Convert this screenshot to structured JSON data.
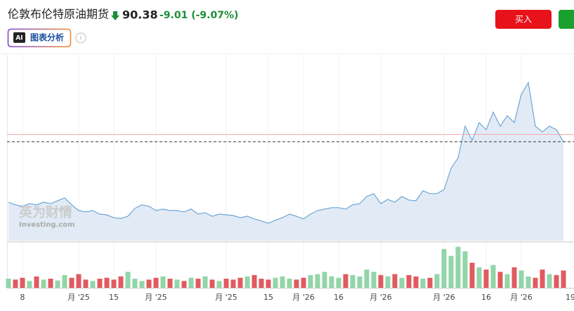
{
  "header": {
    "title": "伦敦布伦特原油期货",
    "price": 90.38,
    "change": "-9.01 (-9.07%)",
    "ai_button": {
      "icon": "AI",
      "label": "图表分析"
    },
    "buy_button": "买入"
  },
  "watermark": {
    "cn": "英为财情",
    "en": "Investing.com"
  },
  "chart_data": {
    "type": "area",
    "categories": [
      null,
      null,
      "8",
      null,
      null,
      null,
      null,
      null,
      null,
      null,
      "月 '25",
      null,
      null,
      null,
      null,
      "15",
      null,
      null,
      null,
      null,
      null,
      "月 '25",
      null,
      null,
      null,
      null,
      null,
      null,
      null,
      null,
      null,
      "月 '25",
      null,
      null,
      null,
      null,
      null,
      "15",
      null,
      null,
      null,
      null,
      "月 '26",
      null,
      null,
      null,
      null,
      "16",
      null,
      null,
      null,
      null,
      null,
      "月 '26",
      null,
      null,
      null,
      null,
      null,
      null,
      null,
      null,
      "月 '26",
      null,
      null,
      null,
      null,
      null,
      "16",
      null,
      null,
      null,
      null,
      "月 '26",
      null,
      null,
      null,
      null,
      null,
      null,
      "19"
    ],
    "values": [
      65.0,
      63.9,
      63.3,
      64.4,
      63.9,
      65.0,
      64.4,
      65.6,
      66.8,
      63.9,
      61.5,
      60.9,
      61.5,
      60.0,
      59.7,
      58.5,
      58.2,
      59.1,
      62.4,
      63.9,
      63.3,
      61.5,
      62.1,
      61.5,
      61.5,
      60.9,
      62.1,
      60.0,
      60.6,
      59.1,
      60.0,
      59.7,
      59.4,
      58.5,
      59.1,
      58.0,
      57.1,
      56.2,
      57.4,
      58.5,
      60.0,
      59.1,
      58.0,
      60.0,
      61.5,
      62.1,
      62.7,
      62.7,
      62.1,
      63.9,
      64.4,
      67.4,
      68.6,
      64.4,
      66.2,
      65.0,
      67.4,
      65.9,
      65.6,
      69.8,
      68.6,
      68.6,
      70.3,
      79.2,
      83.6,
      96.9,
      91.0,
      98.4,
      95.4,
      102.8,
      96.9,
      101.3,
      98.4,
      110.2,
      115.2,
      96.9,
      94.5,
      96.9,
      95.4,
      90.38,
      null
    ],
    "color": "#6ea6d6",
    "fill": "#e2ebf5",
    "ylim": [
      48.8,
      131.6
    ],
    "grid": true,
    "volume": {
      "ylim": [
        0,
        100
      ],
      "values": [
        20,
        18,
        22,
        15,
        25,
        18,
        20,
        16,
        28,
        22,
        30,
        18,
        15,
        20,
        22,
        18,
        25,
        35,
        20,
        15,
        18,
        22,
        25,
        20,
        18,
        15,
        22,
        20,
        25,
        18,
        15,
        20,
        18,
        22,
        25,
        28,
        20,
        18,
        22,
        25,
        20,
        18,
        22,
        28,
        30,
        35,
        25,
        22,
        30,
        28,
        25,
        40,
        35,
        28,
        25,
        30,
        22,
        28,
        25,
        20,
        22,
        30,
        85,
        70,
        90,
        80,
        55,
        45,
        40,
        50,
        35,
        30,
        45,
        38,
        25,
        22,
        40,
        30,
        28,
        38,
        null
      ],
      "colors": [
        "#92d5a8",
        "#e05a5f",
        "#e05a5f",
        "#92d5a8",
        "#e05a5f",
        "#92d5a8",
        "#e05a5f",
        "#92d5a8",
        "#92d5a8",
        "#e05a5f",
        "#e05a5f",
        "#e05a5f",
        "#92d5a8",
        "#e05a5f",
        "#e05a5f",
        "#e05a5f",
        "#e05a5f",
        "#92d5a8",
        "#92d5a8",
        "#92d5a8",
        "#e05a5f",
        "#e05a5f",
        "#92d5a8",
        "#e05a5f",
        "#92d5a8",
        "#e05a5f",
        "#92d5a8",
        "#e05a5f",
        "#92d5a8",
        "#e05a5f",
        "#92d5a8",
        "#e05a5f",
        "#e05a5f",
        "#e05a5f",
        "#92d5a8",
        "#e05a5f",
        "#e05a5f",
        "#e05a5f",
        "#92d5a8",
        "#92d5a8",
        "#92d5a8",
        "#e05a5f",
        "#e05a5f",
        "#92d5a8",
        "#92d5a8",
        "#92d5a8",
        "#92d5a8",
        "#92d5a8",
        "#e05a5f",
        "#92d5a8",
        "#92d5a8",
        "#92d5a8",
        "#92d5a8",
        "#e05a5f",
        "#92d5a8",
        "#e05a5f",
        "#92d5a8",
        "#e05a5f",
        "#e05a5f",
        "#92d5a8",
        "#e05a5f",
        "#92d5a8",
        "#92d5a8",
        "#92d5a8",
        "#92d5a8",
        "#92d5a8",
        "#e05a5f",
        "#92d5a8",
        "#e05a5f",
        "#92d5a8",
        "#e05a5f",
        "#92d5a8",
        "#e05a5f",
        "#92d5a8",
        "#92d5a8",
        "#e05a5f",
        "#e05a5f",
        "#92d5a8",
        "#e05a5f",
        "#e05a5f",
        null
      ]
    }
  }
}
